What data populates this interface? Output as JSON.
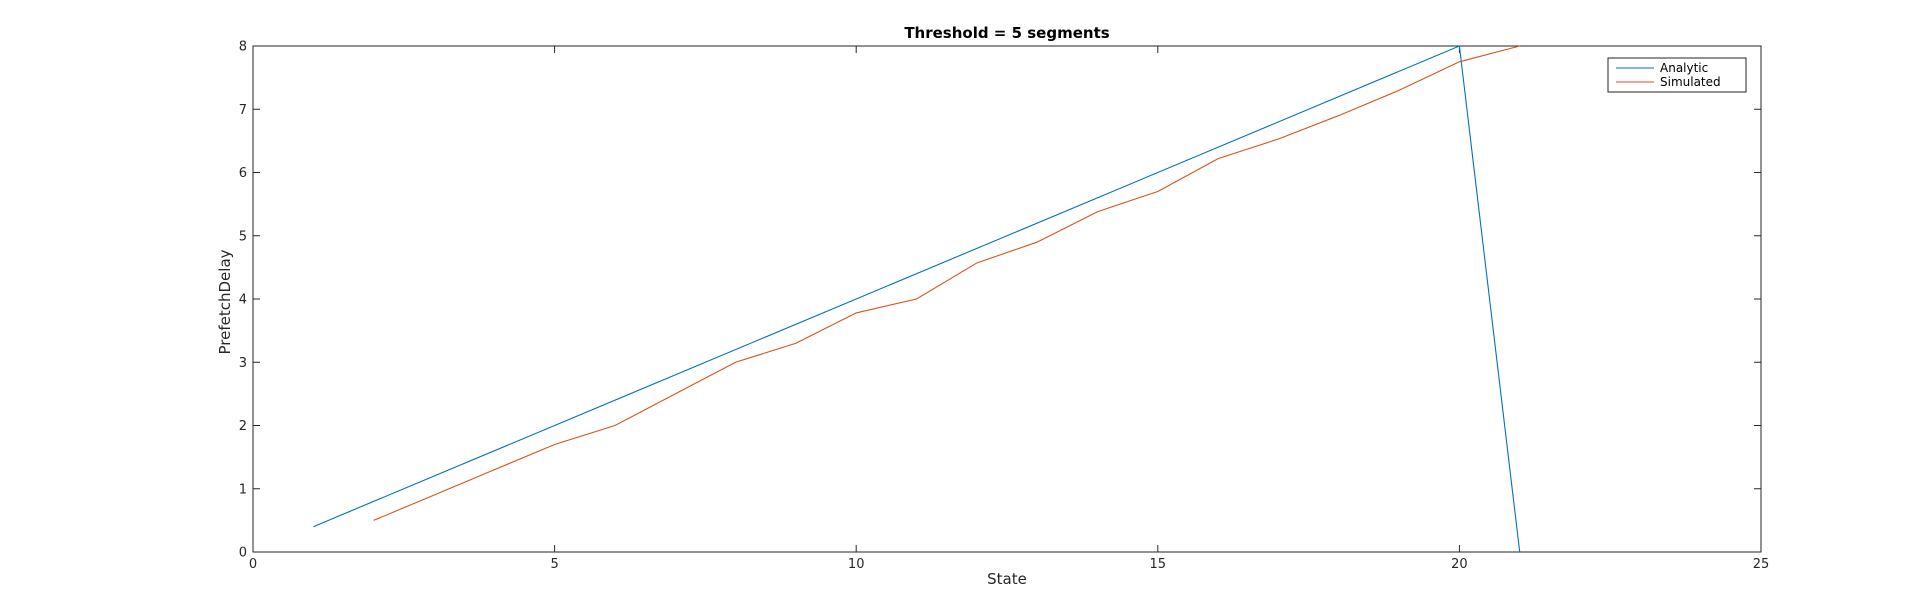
{
  "chart_data": {
    "type": "line",
    "title": "Threshold = 5 segments",
    "xlabel": "State",
    "ylabel": "PrefetchDelay",
    "xlim": [
      0,
      25
    ],
    "ylim": [
      0,
      8
    ],
    "xticks": [
      0,
      5,
      10,
      15,
      20,
      25
    ],
    "yticks": [
      0,
      1,
      2,
      3,
      4,
      5,
      6,
      7,
      8
    ],
    "grid": false,
    "legend_position": "top-right",
    "series": [
      {
        "name": "Analytic",
        "color": "#0072BD",
        "x": [
          1,
          20,
          21
        ],
        "y": [
          0.4,
          8.0,
          0.0
        ]
      },
      {
        "name": "Simulated",
        "color": "#D95319",
        "x": [
          2,
          3,
          4,
          5,
          6,
          7,
          8,
          9,
          10,
          11,
          12,
          13,
          14,
          15,
          16,
          17,
          18,
          19,
          20,
          21
        ],
        "y": [
          0.5,
          0.9,
          1.3,
          1.7,
          2.0,
          2.5,
          3.0,
          3.3,
          3.78,
          4.0,
          4.57,
          4.9,
          5.38,
          5.7,
          6.22,
          6.53,
          6.9,
          7.3,
          7.75,
          8.0
        ]
      }
    ]
  }
}
